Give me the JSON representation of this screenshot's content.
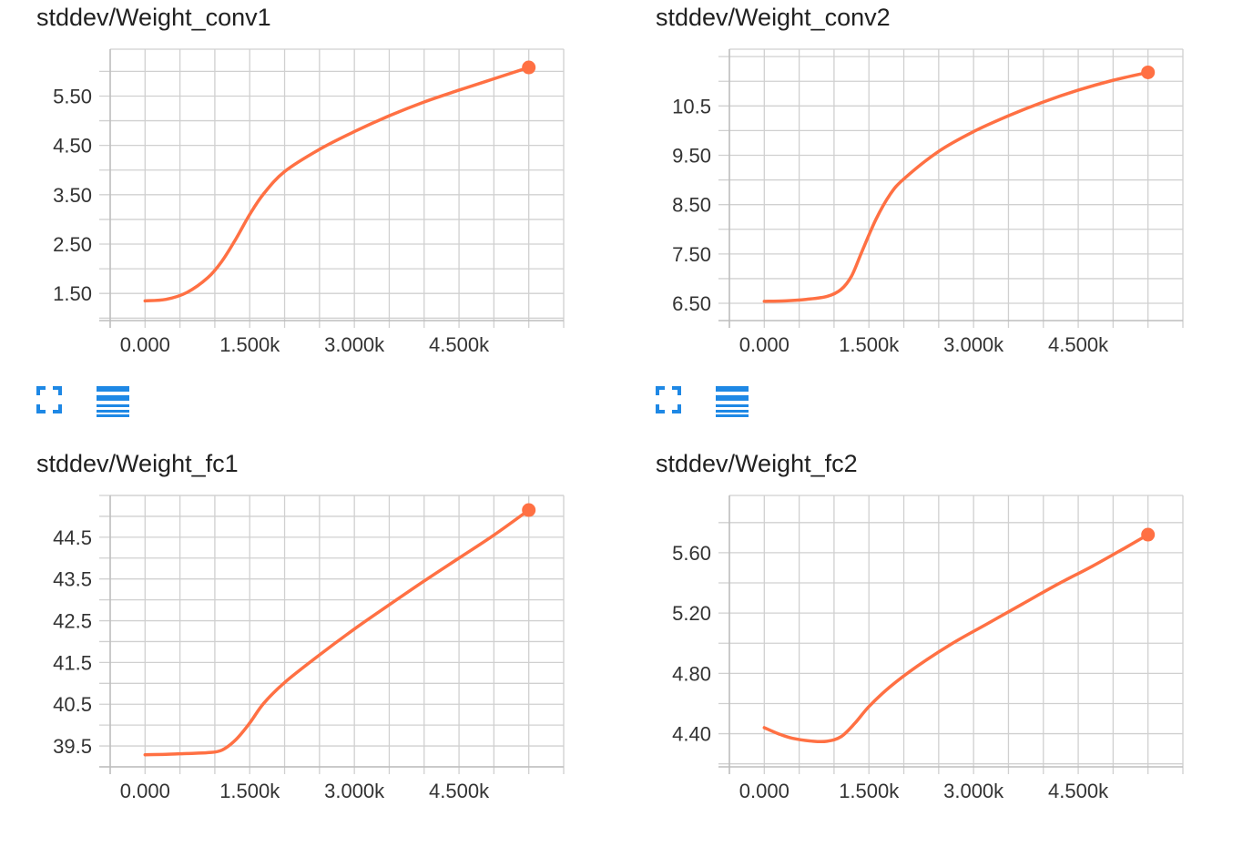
{
  "colors": {
    "series": "#ff7043",
    "grid": "#d0d0d0",
    "axis": "#bdbdbd",
    "icon": "#1e88e5"
  },
  "toolbar": {
    "expand_icon": "expand-icon",
    "data_icon": "list-icon"
  },
  "charts": [
    {
      "title": "stddev/Weight_conv1"
    },
    {
      "title": "stddev/Weight_conv2"
    },
    {
      "title": "stddev/Weight_fc1"
    },
    {
      "title": "stddev/Weight_fc2"
    }
  ],
  "chart_data": [
    {
      "type": "line",
      "title": "stddev/Weight_conv1",
      "xlim": [
        -500,
        6000
      ],
      "ylim": [
        0.95,
        6.45
      ],
      "x_ticks": [
        "0.000",
        "1.500k",
        "3.000k",
        "4.500k"
      ],
      "x_tick_values": [
        0,
        1500,
        3000,
        4500
      ],
      "y_ticks": [
        "1.50",
        "2.50",
        "3.50",
        "4.50",
        "5.50"
      ],
      "y_tick_values": [
        1.5,
        2.5,
        3.5,
        4.5,
        5.5
      ],
      "grid": true,
      "series": [
        {
          "x": [
            0,
            300,
            600,
            900,
            1100,
            1300,
            1500,
            1700,
            2000,
            2500,
            3000,
            3500,
            4000,
            4500,
            5000,
            5500
          ],
          "y": [
            1.35,
            1.38,
            1.52,
            1.82,
            2.15,
            2.6,
            3.1,
            3.52,
            3.97,
            4.42,
            4.78,
            5.1,
            5.38,
            5.62,
            5.85,
            6.08
          ]
        }
      ]
    },
    {
      "type": "line",
      "title": "stddev/Weight_conv2",
      "xlim": [
        -500,
        6000
      ],
      "ylim": [
        6.15,
        11.65
      ],
      "x_ticks": [
        "0.000",
        "1.500k",
        "3.000k",
        "4.500k"
      ],
      "x_tick_values": [
        0,
        1500,
        3000,
        4500
      ],
      "y_ticks": [
        "6.50",
        "7.50",
        "8.50",
        "9.50",
        "10.5"
      ],
      "y_tick_values": [
        6.5,
        7.5,
        8.5,
        9.5,
        10.5
      ],
      "grid": true,
      "series": [
        {
          "x": [
            0,
            300,
            600,
            900,
            1100,
            1250,
            1400,
            1600,
            1800,
            2000,
            2500,
            3000,
            3500,
            4000,
            4500,
            5000,
            5500
          ],
          "y": [
            6.54,
            6.55,
            6.58,
            6.64,
            6.78,
            7.05,
            7.55,
            8.2,
            8.7,
            9.02,
            9.58,
            9.98,
            10.3,
            10.58,
            10.82,
            11.02,
            11.18
          ]
        }
      ]
    },
    {
      "type": "line",
      "title": "stddev/Weight_fc1",
      "xlim": [
        -500,
        6000
      ],
      "ylim": [
        39.0,
        45.5
      ],
      "x_ticks": [
        "0.000",
        "1.500k",
        "3.000k",
        "4.500k"
      ],
      "x_tick_values": [
        0,
        1500,
        3000,
        4500
      ],
      "y_ticks": [
        "39.5",
        "40.5",
        "41.5",
        "42.5",
        "43.5",
        "44.5"
      ],
      "y_tick_values": [
        39.5,
        40.5,
        41.5,
        42.5,
        43.5,
        44.5
      ],
      "grid": true,
      "series": [
        {
          "x": [
            0,
            300,
            600,
            900,
            1100,
            1300,
            1500,
            1700,
            2000,
            2500,
            3000,
            3500,
            4000,
            4500,
            5000,
            5500
          ],
          "y": [
            39.29,
            39.3,
            39.32,
            39.34,
            39.4,
            39.65,
            40.05,
            40.52,
            41.02,
            41.68,
            42.3,
            42.88,
            43.45,
            44.0,
            44.55,
            45.15
          ]
        }
      ]
    },
    {
      "type": "line",
      "title": "stddev/Weight_fc2",
      "xlim": [
        -500,
        6000
      ],
      "ylim": [
        4.18,
        5.98
      ],
      "x_ticks": [
        "0.000",
        "1.500k",
        "3.000k",
        "4.500k"
      ],
      "x_tick_values": [
        0,
        1500,
        3000,
        4500
      ],
      "y_ticks": [
        "4.40",
        "4.80",
        "5.20",
        "5.60"
      ],
      "y_tick_values": [
        4.4,
        4.8,
        5.2,
        5.6
      ],
      "grid": true,
      "series": [
        {
          "x": [
            0,
            200,
            400,
            700,
            900,
            1100,
            1300,
            1500,
            1800,
            2200,
            2700,
            3200,
            3700,
            4200,
            4700,
            5200,
            5500
          ],
          "y": [
            4.44,
            4.4,
            4.37,
            4.35,
            4.35,
            4.38,
            4.47,
            4.58,
            4.71,
            4.85,
            5.0,
            5.13,
            5.26,
            5.39,
            5.51,
            5.64,
            5.72
          ]
        }
      ]
    }
  ]
}
